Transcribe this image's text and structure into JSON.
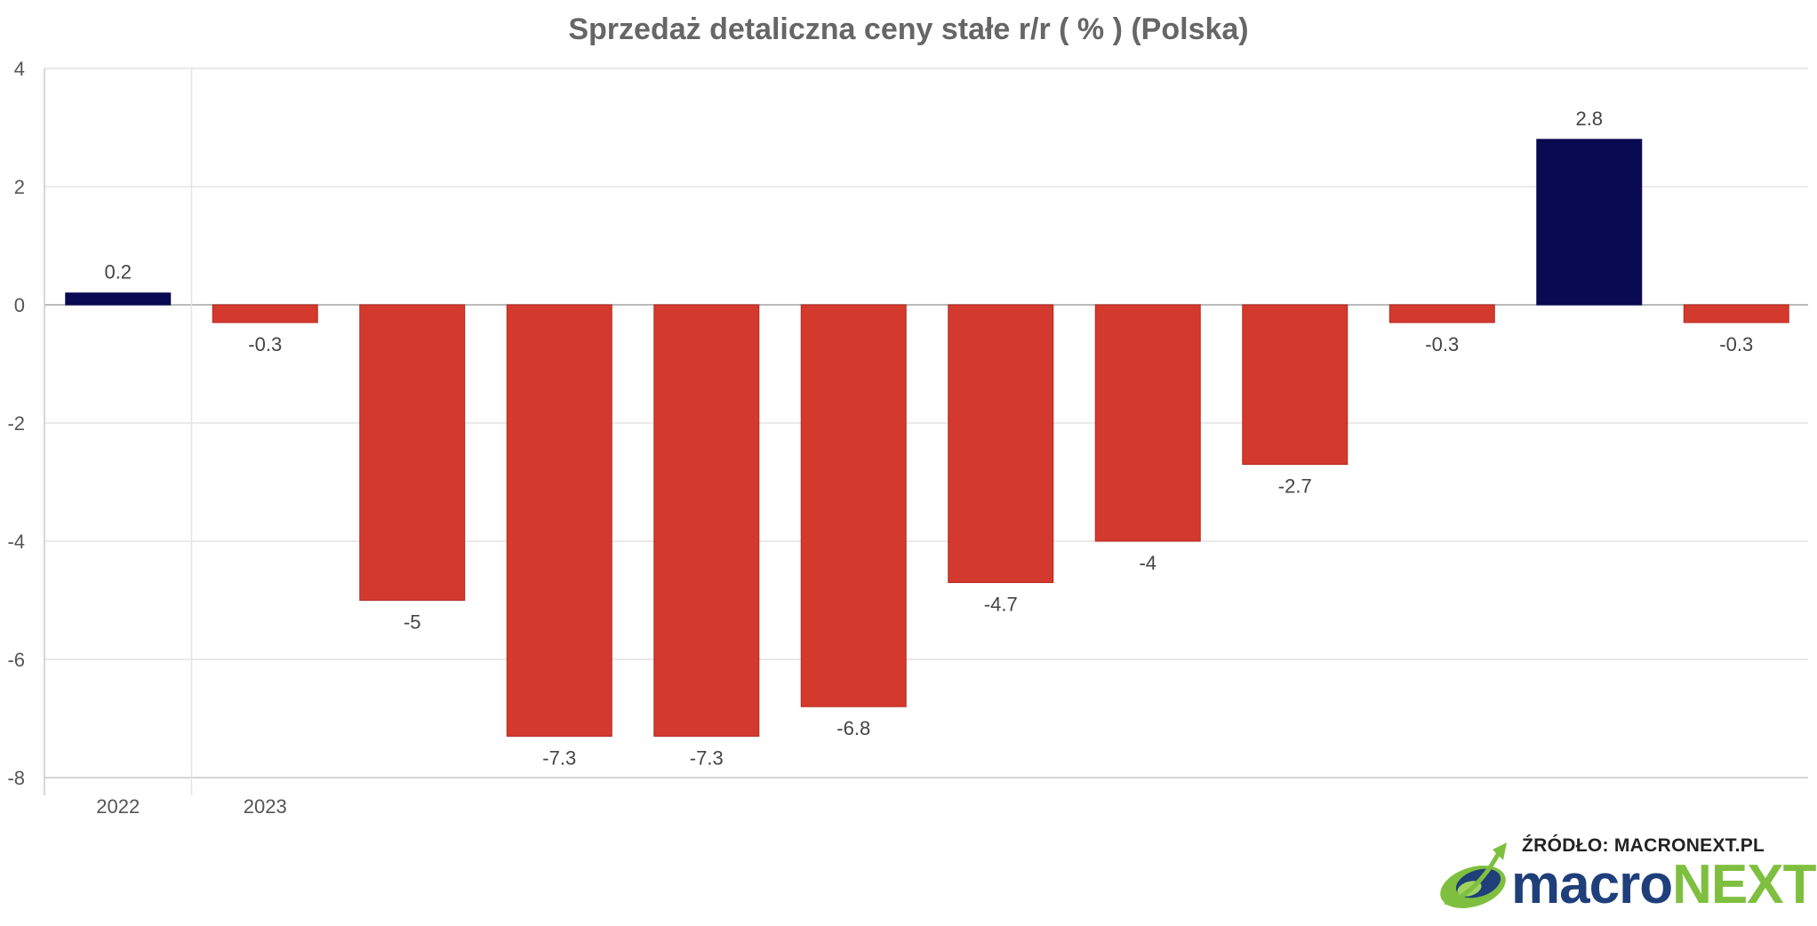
{
  "title": "Sprzedaż detaliczna ceny stałe r/r ( % ) (Polska)",
  "source": "ŹRÓDŁO: MACRONEXT.PL",
  "brand": {
    "part1": "macro",
    "part2": "NEXT"
  },
  "colors": {
    "positive": "#0a0a52",
    "negative": "#d4392d",
    "grid": "#e3e3e3",
    "axis": "#cccccc"
  },
  "chart_data": {
    "type": "bar",
    "title": "Sprzedaż detaliczna ceny stałe r/r ( % ) (Polska)",
    "xlabel": "",
    "ylabel": "",
    "ylim": [
      -8,
      4
    ],
    "yticks": [
      4,
      2,
      0,
      -2,
      -4,
      -6,
      -8
    ],
    "year_labels": [
      {
        "label": "2022",
        "index": 0
      },
      {
        "label": "2023",
        "index": 1
      }
    ],
    "values": [
      0.2,
      -0.3,
      -5,
      -7.3,
      -7.3,
      -6.8,
      -4.7,
      -4,
      -2.7,
      -0.3,
      2.8,
      -0.3
    ],
    "value_labels": [
      "0.2",
      "-0.3",
      "-5",
      "-7.3",
      "-7.3",
      "-6.8",
      "-4.7",
      "-4",
      "-2.7",
      "-0.3",
      "2.8",
      "-0.3"
    ],
    "grid": true,
    "legend": "none"
  }
}
